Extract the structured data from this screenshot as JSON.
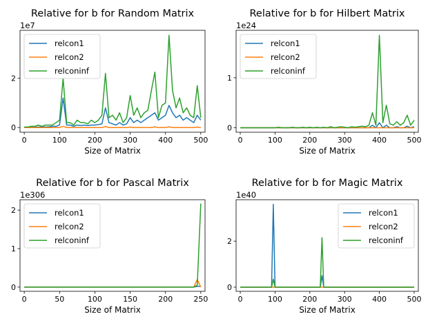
{
  "colors": {
    "relcon1": "#1f77b4",
    "relcon2": "#ff7f0e",
    "relconinf": "#2ca02c"
  },
  "chart_data": [
    {
      "type": "line",
      "title": "Relative for b for Random Matrix",
      "xlabel": "Size of Matrix",
      "ylabel": "",
      "offset_label": "1e7",
      "xlim": [
        -12,
        512
      ],
      "ylim": [
        -0.19,
        3.95
      ],
      "xticks": [
        0,
        100,
        200,
        300,
        400,
        500
      ],
      "yticks": [
        0,
        2
      ],
      "legend": "upper-left",
      "x": [
        0,
        10,
        20,
        30,
        40,
        50,
        60,
        70,
        80,
        90,
        100,
        110,
        120,
        130,
        140,
        150,
        160,
        170,
        180,
        190,
        200,
        210,
        220,
        230,
        240,
        250,
        260,
        270,
        280,
        290,
        300,
        310,
        320,
        330,
        340,
        350,
        360,
        370,
        380,
        390,
        400,
        410,
        420,
        430,
        440,
        450,
        460,
        470,
        480,
        490,
        500
      ],
      "series": [
        {
          "name": "relcon1",
          "values": [
            0.01,
            0.01,
            0.01,
            0.02,
            0.02,
            0.03,
            0.02,
            0.03,
            0.05,
            0.05,
            0.1,
            1.2,
            0.1,
            0.1,
            0.05,
            0.1,
            0.08,
            0.1,
            0.08,
            0.1,
            0.1,
            0.12,
            0.15,
            0.8,
            0.2,
            0.15,
            0.1,
            0.2,
            0.1,
            0.15,
            0.4,
            0.2,
            0.3,
            0.2,
            0.3,
            0.4,
            0.5,
            0.6,
            0.3,
            0.4,
            0.5,
            0.9,
            0.6,
            0.4,
            0.5,
            0.3,
            0.4,
            0.3,
            0.2,
            0.5,
            0.3
          ]
        },
        {
          "name": "relcon2",
          "values": [
            0,
            0,
            0,
            0,
            0,
            0,
            0,
            0,
            0,
            0,
            0,
            0.05,
            0,
            0,
            0,
            0,
            0,
            0,
            0,
            0,
            0,
            0,
            0,
            0.04,
            0,
            0,
            0,
            0,
            0,
            0,
            0.02,
            0,
            0,
            0,
            0,
            0,
            0,
            0.03,
            0,
            0,
            0,
            0.03,
            0,
            0,
            0,
            0,
            0,
            0,
            0,
            0.02,
            0
          ]
        },
        {
          "name": "relconinf",
          "values": [
            0.02,
            0.02,
            0.05,
            0.05,
            0.1,
            0.05,
            0.1,
            0.1,
            0.1,
            0.2,
            0.3,
            2.0,
            0.2,
            0.2,
            0.1,
            0.3,
            0.2,
            0.2,
            0.15,
            0.3,
            0.2,
            0.3,
            0.5,
            2.2,
            0.4,
            0.5,
            0.3,
            0.6,
            0.2,
            0.4,
            1.3,
            0.5,
            0.8,
            0.4,
            0.6,
            0.7,
            1.5,
            2.25,
            0.4,
            0.9,
            1.0,
            3.75,
            1.5,
            0.8,
            1.2,
            0.6,
            0.8,
            0.5,
            0.4,
            1.7,
            0.4
          ]
        }
      ]
    },
    {
      "type": "line",
      "title": "Relative for b for Hilbert Matrix",
      "xlabel": "Size of Matrix",
      "ylabel": "",
      "offset_label": "1e24",
      "xlim": [
        -12,
        512
      ],
      "ylim": [
        -0.09,
        1.95
      ],
      "xticks": [
        0,
        100,
        200,
        300,
        400,
        500
      ],
      "yticks": [
        0,
        1
      ],
      "legend": "upper-left",
      "x": [
        0,
        10,
        20,
        30,
        40,
        50,
        60,
        70,
        80,
        90,
        100,
        110,
        120,
        130,
        140,
        150,
        160,
        170,
        180,
        190,
        200,
        210,
        220,
        230,
        240,
        250,
        260,
        270,
        280,
        290,
        300,
        310,
        320,
        330,
        340,
        350,
        360,
        370,
        380,
        390,
        400,
        410,
        420,
        430,
        440,
        450,
        460,
        470,
        480,
        490,
        500
      ],
      "series": [
        {
          "name": "relcon1",
          "values": [
            0,
            0,
            0,
            0,
            0,
            0,
            0,
            0,
            0,
            0,
            0,
            0,
            0,
            0,
            0,
            0,
            0,
            0,
            0,
            0,
            0,
            0,
            0,
            0,
            0,
            0,
            0,
            0,
            0,
            0,
            0,
            0,
            0,
            0,
            0,
            0,
            0,
            0,
            0.05,
            0,
            0.1,
            0,
            0.05,
            0,
            0,
            0.02,
            0,
            0,
            0.03,
            0,
            0.02
          ]
        },
        {
          "name": "relcon2",
          "values": [
            0,
            0,
            0,
            0,
            0,
            0,
            0,
            0,
            0,
            0,
            0,
            0,
            0,
            0,
            0,
            0,
            0,
            0,
            0,
            0,
            0,
            0,
            0,
            0,
            0,
            0,
            0,
            0,
            0,
            0,
            0,
            0,
            0,
            0,
            0,
            0,
            0,
            0,
            0,
            0,
            0,
            0,
            0,
            0,
            0,
            0,
            0,
            0,
            0,
            0,
            0
          ]
        },
        {
          "name": "relconinf",
          "values": [
            0,
            0,
            0,
            0,
            0,
            0,
            0,
            0,
            0,
            0,
            0,
            0.01,
            0,
            0,
            0,
            0.01,
            0,
            0,
            0.01,
            0,
            0.01,
            0,
            0.01,
            0,
            0.01,
            0,
            0.02,
            0,
            0.01,
            0.02,
            0.01,
            0,
            0.02,
            0.01,
            0.02,
            0.03,
            0.02,
            0.05,
            0.3,
            0.05,
            1.85,
            0.1,
            0.45,
            0.08,
            0.05,
            0.12,
            0.05,
            0.1,
            0.25,
            0.05,
            0.15
          ]
        }
      ]
    },
    {
      "type": "line",
      "title": "Relative for b for Pascal Matrix",
      "xlabel": "Size of Matrix",
      "ylabel": "",
      "offset_label": "1e306",
      "xlim": [
        -6,
        256
      ],
      "ylim": [
        -0.11,
        2.27
      ],
      "xticks": [
        0,
        50,
        100,
        150,
        200,
        250
      ],
      "yticks": [
        0,
        1,
        2
      ],
      "legend": "upper-left",
      "x": [
        0,
        10,
        20,
        30,
        40,
        50,
        60,
        70,
        80,
        90,
        100,
        110,
        120,
        130,
        140,
        150,
        160,
        170,
        180,
        190,
        200,
        210,
        220,
        230,
        240,
        245,
        250
      ],
      "series": [
        {
          "name": "relcon1",
          "values": [
            0,
            0,
            0,
            0,
            0,
            0,
            0,
            0,
            0,
            0,
            0,
            0,
            0,
            0,
            0,
            0,
            0,
            0,
            0,
            0,
            0,
            0,
            0,
            0,
            0,
            0.02,
            0.02
          ]
        },
        {
          "name": "relcon2",
          "values": [
            0,
            0,
            0,
            0,
            0,
            0,
            0,
            0,
            0,
            0,
            0,
            0,
            0,
            0,
            0,
            0,
            0,
            0,
            0,
            0,
            0,
            0,
            0,
            0,
            0,
            0.2,
            0
          ]
        },
        {
          "name": "relconinf",
          "values": [
            0,
            0,
            0,
            0,
            0,
            0,
            0,
            0,
            0,
            0,
            0,
            0,
            0,
            0,
            0,
            0,
            0,
            0,
            0,
            0,
            0,
            0,
            0,
            0,
            0,
            0.05,
            2.17
          ]
        }
      ]
    },
    {
      "type": "line",
      "title": "Relative for b for Magic Matrix",
      "xlabel": "Size of Matrix",
      "ylabel": "",
      "offset_label": "1e40",
      "xlim": [
        -12,
        512
      ],
      "ylim": [
        -0.18,
        3.8
      ],
      "xticks": [
        0,
        100,
        200,
        300,
        400,
        500
      ],
      "yticks": [
        0,
        2
      ],
      "legend": "upper-right",
      "x": [
        0,
        10,
        20,
        30,
        40,
        50,
        60,
        70,
        80,
        90,
        95,
        100,
        110,
        120,
        130,
        140,
        150,
        160,
        170,
        180,
        190,
        200,
        210,
        220,
        230,
        235,
        240,
        250,
        260,
        270,
        280,
        290,
        300,
        310,
        320,
        330,
        340,
        350,
        360,
        370,
        380,
        390,
        400,
        410,
        420,
        430,
        440,
        450,
        460,
        470,
        480,
        490,
        500
      ],
      "series": [
        {
          "name": "relcon1",
          "values": [
            0,
            0,
            0,
            0,
            0,
            0,
            0,
            0,
            0,
            0,
            3.6,
            0,
            0,
            0,
            0,
            0,
            0,
            0,
            0,
            0,
            0,
            0,
            0,
            0,
            0,
            0.5,
            0,
            0,
            0,
            0,
            0,
            0,
            0,
            0,
            0,
            0,
            0,
            0,
            0,
            0,
            0,
            0,
            0,
            0,
            0,
            0,
            0,
            0,
            0,
            0,
            0,
            0,
            0
          ]
        },
        {
          "name": "relcon2",
          "values": [
            0,
            0,
            0,
            0,
            0,
            0,
            0,
            0,
            0,
            0,
            0,
            0,
            0,
            0,
            0,
            0,
            0,
            0,
            0,
            0,
            0,
            0,
            0,
            0,
            0,
            0,
            0,
            0,
            0,
            0,
            0,
            0,
            0,
            0,
            0,
            0,
            0,
            0,
            0,
            0,
            0,
            0,
            0,
            0,
            0,
            0,
            0,
            0,
            0,
            0,
            0,
            0,
            0
          ]
        },
        {
          "name": "relconinf",
          "values": [
            0,
            0,
            0,
            0,
            0,
            0,
            0,
            0,
            0,
            0,
            0.35,
            0,
            0,
            0,
            0,
            0,
            0,
            0,
            0,
            0,
            0,
            0,
            0,
            0,
            0,
            2.15,
            0,
            0,
            0,
            0,
            0,
            0,
            0,
            0,
            0,
            0,
            0,
            0,
            0,
            0,
            0,
            0,
            0,
            0,
            0,
            0,
            0,
            0,
            0,
            0,
            0,
            0,
            0
          ]
        }
      ]
    }
  ]
}
